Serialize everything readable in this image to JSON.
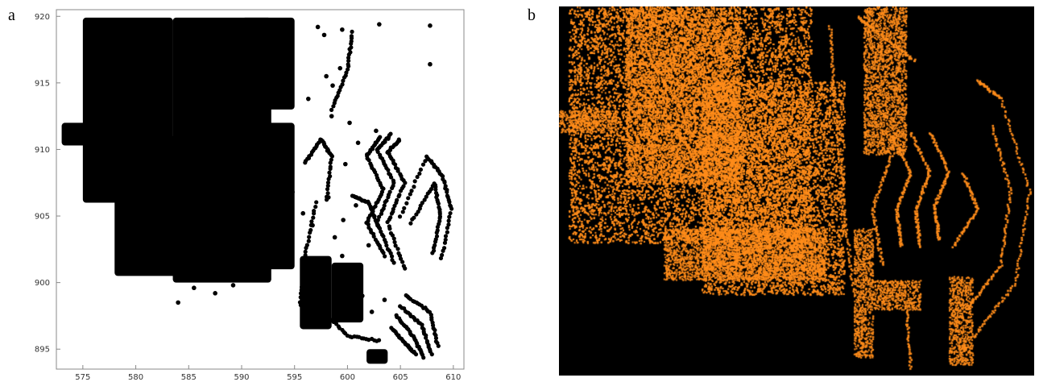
{
  "panels": {
    "a_label": "a",
    "b_label": "b"
  },
  "chart_data": [
    {
      "type": "scatter",
      "panel": "a",
      "title": "",
      "xlabel": "",
      "ylabel": "",
      "xlim": [
        572.5,
        611
      ],
      "ylim": [
        893.5,
        920.5
      ],
      "xticks": [
        575,
        580,
        585,
        590,
        595,
        600,
        605,
        610
      ],
      "yticks": [
        895,
        900,
        905,
        910,
        915,
        920
      ],
      "grid": false,
      "colors": {
        "points": "#000000",
        "background": "#ffffff",
        "axes": "#888888"
      },
      "regions": [
        {
          "kind": "dense",
          "x": [
            575.0,
            583.5
          ],
          "y": [
            906.0,
            919.9
          ]
        },
        {
          "kind": "dense",
          "x": [
            583.5,
            592.8
          ],
          "y": [
            900.0,
            919.9
          ]
        },
        {
          "kind": "dense",
          "x": [
            578.0,
            586.0
          ],
          "y": [
            900.5,
            911.0
          ]
        },
        {
          "kind": "dense",
          "x": [
            573.0,
            578.0
          ],
          "y": [
            910.3,
            912.0
          ]
        },
        {
          "kind": "dense",
          "x": [
            590.0,
            595.0
          ],
          "y": [
            913.0,
            919.9
          ]
        },
        {
          "kind": "dense",
          "x": [
            592.0,
            595.0
          ],
          "y": [
            901.0,
            912.0
          ]
        },
        {
          "kind": "dense",
          "x": [
            595.5,
            598.5
          ],
          "y": [
            896.5,
            902.0
          ]
        },
        {
          "kind": "dense",
          "x": [
            598.5,
            601.5
          ],
          "y": [
            897.0,
            901.5
          ]
        },
        {
          "kind": "dense",
          "x": [
            601.8,
            603.8
          ],
          "y": [
            893.9,
            895.0
          ]
        }
      ],
      "curves": [
        [
          [
            603.5,
            902.0
          ],
          [
            601.8,
            904.5
          ],
          [
            603.4,
            907.0
          ],
          [
            601.8,
            909.5
          ],
          [
            603.2,
            911.0
          ]
        ],
        [
          [
            604.4,
            901.5
          ],
          [
            602.8,
            904.5
          ],
          [
            604.4,
            907.5
          ],
          [
            602.8,
            910.0
          ],
          [
            604.2,
            911.2
          ]
        ],
        [
          [
            605.4,
            901.0
          ],
          [
            603.8,
            904.5
          ],
          [
            605.4,
            907.5
          ],
          [
            603.8,
            909.8
          ],
          [
            605.0,
            910.8
          ]
        ],
        [
          [
            605.0,
            905.0
          ],
          [
            607.5,
            909.5
          ],
          [
            609.0,
            908.0
          ],
          [
            609.8,
            905.5
          ],
          [
            608.8,
            901.5
          ]
        ],
        [
          [
            606.0,
            904.5
          ],
          [
            608.2,
            907.5
          ],
          [
            608.8,
            905.0
          ],
          [
            608.0,
            902.0
          ]
        ],
        [
          [
            605.5,
            899.0
          ],
          [
            607.8,
            897.8
          ],
          [
            608.6,
            895.0
          ]
        ],
        [
          [
            605.0,
            898.2
          ],
          [
            607.0,
            896.8
          ],
          [
            608.0,
            894.5
          ]
        ],
        [
          [
            604.6,
            897.5
          ],
          [
            606.2,
            896.0
          ],
          [
            607.2,
            894.3
          ]
        ],
        [
          [
            604.2,
            896.6
          ],
          [
            605.5,
            895.4
          ],
          [
            606.5,
            894.6
          ]
        ],
        [
          [
            596.0,
            909.0
          ],
          [
            597.5,
            910.8
          ],
          [
            598.5,
            909.5
          ],
          [
            598.0,
            906.0
          ]
        ],
        [
          [
            597.0,
            906.0
          ],
          [
            596.0,
            902.0
          ],
          [
            595.5,
            898.0
          ]
        ],
        [
          [
            598.5,
            913.0
          ],
          [
            600.0,
            916.0
          ],
          [
            600.5,
            919.0
          ]
        ],
        [
          [
            600.5,
            906.5
          ],
          [
            602.0,
            906.0
          ],
          [
            603.0,
            904.0
          ]
        ],
        [
          [
            597.5,
            898.0
          ],
          [
            600.0,
            896.0
          ],
          [
            603.2,
            895.6
          ]
        ]
      ],
      "scatter": [
        [
          597.2,
          919.2
        ],
        [
          597.8,
          918.6
        ],
        [
          599.5,
          919.0
        ],
        [
          598.0,
          915.5
        ],
        [
          598.6,
          914.8
        ],
        [
          599.3,
          916.1
        ],
        [
          603.0,
          919.4
        ],
        [
          607.8,
          919.3
        ],
        [
          607.8,
          916.4
        ],
        [
          596.3,
          913.8
        ],
        [
          594.5,
          914.2
        ],
        [
          598.5,
          912.5
        ],
        [
          600.2,
          912.0
        ],
        [
          600.8,
          905.8
        ],
        [
          599.6,
          904.7
        ],
        [
          598.2,
          906.4
        ],
        [
          598.8,
          903.4
        ],
        [
          599.5,
          902.0
        ],
        [
          594.2,
          908.2
        ],
        [
          594.8,
          906.8
        ],
        [
          595.8,
          905.2
        ],
        [
          596.7,
          904.3
        ],
        [
          599.8,
          908.9
        ],
        [
          601.0,
          910.5
        ],
        [
          602.7,
          911.4
        ],
        [
          601.4,
          899.0
        ],
        [
          602.3,
          897.8
        ],
        [
          603.5,
          898.7
        ],
        [
          602.0,
          902.8
        ],
        [
          584.0,
          898.5
        ],
        [
          585.5,
          899.6
        ],
        [
          587.5,
          899.2
        ],
        [
          589.2,
          899.8
        ],
        [
          591.0,
          900.3
        ]
      ]
    },
    {
      "type": "scatter",
      "panel": "b",
      "title": "",
      "xlabel": "",
      "ylabel": "",
      "colors": {
        "points": "#ff8c1a",
        "background": "#000000"
      },
      "regions": [
        {
          "kind": "dense",
          "x": [
            0.02,
            0.53
          ],
          "y": [
            0.36,
            1.0
          ]
        },
        {
          "kind": "dense",
          "x": [
            0.14,
            0.38
          ],
          "y": [
            0.52,
            1.0
          ]
        },
        {
          "kind": "dense",
          "x": [
            0.3,
            0.6
          ],
          "y": [
            0.22,
            0.8
          ]
        },
        {
          "kind": "dense",
          "x": [
            0.22,
            0.56
          ],
          "y": [
            0.26,
            0.4
          ]
        },
        {
          "kind": "dense",
          "x": [
            0.0,
            0.12
          ],
          "y": [
            0.66,
            0.72
          ]
        },
        {
          "kind": "dense",
          "x": [
            0.62,
            0.66
          ],
          "y": [
            0.05,
            0.4
          ]
        },
        {
          "kind": "dense",
          "x": [
            0.66,
            0.76
          ],
          "y": [
            0.18,
            0.26
          ]
        },
        {
          "kind": "dense",
          "x": [
            0.82,
            0.87
          ],
          "y": [
            0.03,
            0.27
          ]
        },
        {
          "kind": "dense",
          "x": [
            0.64,
            0.73
          ],
          "y": [
            0.6,
            1.0
          ]
        }
      ],
      "curves": [
        [
          [
            0.87,
            0.1
          ],
          [
            0.96,
            0.25
          ],
          [
            0.99,
            0.5
          ],
          [
            0.93,
            0.75
          ],
          [
            0.88,
            0.8
          ]
        ],
        [
          [
            0.86,
            0.18
          ],
          [
            0.93,
            0.3
          ],
          [
            0.95,
            0.5
          ],
          [
            0.91,
            0.68
          ]
        ],
        [
          [
            0.8,
            0.37
          ],
          [
            0.79,
            0.46
          ],
          [
            0.82,
            0.55
          ],
          [
            0.78,
            0.66
          ]
        ],
        [
          [
            0.76,
            0.35
          ],
          [
            0.75,
            0.45
          ],
          [
            0.78,
            0.55
          ],
          [
            0.74,
            0.66
          ]
        ],
        [
          [
            0.72,
            0.35
          ],
          [
            0.71,
            0.45
          ],
          [
            0.74,
            0.55
          ],
          [
            0.7,
            0.65
          ]
        ],
        [
          [
            0.68,
            0.3
          ],
          [
            0.66,
            0.45
          ],
          [
            0.7,
            0.6
          ]
        ],
        [
          [
            0.83,
            0.35
          ],
          [
            0.88,
            0.45
          ],
          [
            0.85,
            0.55
          ]
        ],
        [
          [
            0.62,
            0.22
          ],
          [
            0.6,
            0.45
          ],
          [
            0.58,
            0.75
          ],
          [
            0.57,
            0.95
          ]
        ],
        [
          [
            0.74,
            0.02
          ],
          [
            0.73,
            0.2
          ]
        ],
        [
          [
            0.63,
            0.97
          ],
          [
            0.68,
            0.92
          ],
          [
            0.75,
            0.85
          ]
        ]
      ],
      "scatter": []
    }
  ]
}
